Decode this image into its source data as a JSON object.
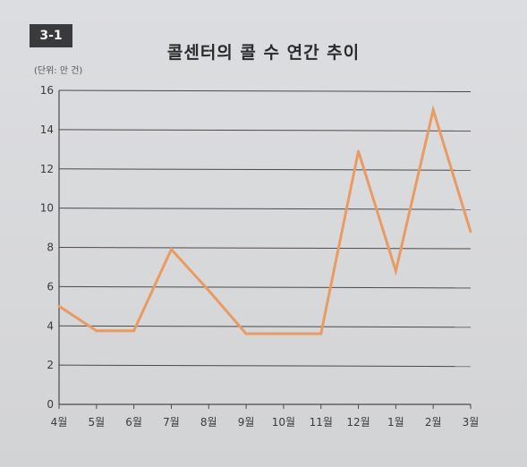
{
  "badge": "3-1",
  "title": "콜센터의 콜 수 연간 추이",
  "unit": "(단위: 만 건)",
  "colors": {
    "line": "#ea9a63",
    "grid": "#4a4a4a",
    "badge_bg": "#3a3a3c"
  },
  "chart_data": {
    "type": "line",
    "title": "콜센터의 콜 수 연간 추이",
    "ylabel": "(단위: 만 건)",
    "xlabel": "",
    "categories": [
      "4월",
      "5월",
      "6월",
      "7월",
      "8월",
      "9월",
      "10월",
      "11월",
      "12월",
      "1월",
      "2월",
      "3월"
    ],
    "series": [
      {
        "values": [
          5.0,
          3.75,
          3.75,
          7.9,
          5.8,
          3.6,
          3.6,
          3.6,
          12.9,
          6.8,
          15.0,
          8.8
        ]
      }
    ],
    "ylim": [
      0,
      16
    ],
    "yticks": [
      0,
      2,
      4,
      6,
      8,
      10,
      12,
      14,
      16
    ],
    "grid": true,
    "legend": "none"
  }
}
